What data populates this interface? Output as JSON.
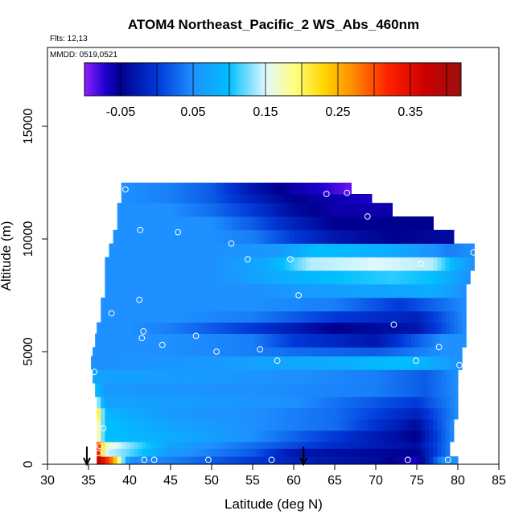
{
  "chart_data": {
    "type": "heatmap",
    "title": "ATOM4 Northeast_Pacific_2 WS_Abs_460nm",
    "flights_label": "Flts: 12,13",
    "dates_label": "MMDD: 0519,0521",
    "xlabel": "Latitude (deg N)",
    "ylabel": "Altitude (m)",
    "xlim": [
      30,
      85
    ],
    "ylim": [
      0,
      18500
    ],
    "xticks": [
      "30",
      "35",
      "40",
      "45",
      "50",
      "55",
      "60",
      "65",
      "70",
      "75",
      "80",
      "85"
    ],
    "yticks": [
      "0",
      "5000",
      "10000",
      "15000"
    ],
    "colorbar": {
      "min": -0.1,
      "max": 0.42,
      "ticks": [
        "-0.05",
        "0.05",
        "0.15",
        "0.25",
        "0.35"
      ],
      "tick_values": [
        -0.05,
        0.05,
        0.15,
        0.25,
        0.35
      ],
      "stops": [
        {
          "v": -0.1,
          "c": "#8f1fff"
        },
        {
          "v": -0.07,
          "c": "#1a00c9"
        },
        {
          "v": -0.05,
          "c": "#000090"
        },
        {
          "v": 0.0,
          "c": "#0038d8"
        },
        {
          "v": 0.05,
          "c": "#1e90ff"
        },
        {
          "v": 0.1,
          "c": "#00bfff"
        },
        {
          "v": 0.15,
          "c": "#e0f8ff"
        },
        {
          "v": 0.19,
          "c": "#ffff80"
        },
        {
          "v": 0.23,
          "c": "#ffd700"
        },
        {
          "v": 0.27,
          "c": "#ff8c00"
        },
        {
          "v": 0.32,
          "c": "#ff2000"
        },
        {
          "v": 0.37,
          "c": "#cc0000"
        },
        {
          "v": 0.42,
          "c": "#9e1010"
        }
      ]
    },
    "layers": [
      {
        "alt": [
          0,
          350
        ],
        "lat": [
          36,
          80
        ],
        "pts": [
          [
            36,
            0.4
          ],
          [
            37,
            0.33
          ],
          [
            38,
            0.27
          ],
          [
            39,
            0.15
          ],
          [
            40,
            0.05
          ],
          [
            45,
            0.04
          ],
          [
            55,
            0.0
          ],
          [
            60,
            -0.02
          ],
          [
            70,
            -0.04
          ],
          [
            75,
            -0.07
          ],
          [
            78,
            0.05
          ],
          [
            80,
            0.05
          ]
        ]
      },
      {
        "alt": [
          350,
          700
        ],
        "lat": [
          36,
          79
        ],
        "pts": [
          [
            36,
            0.38
          ],
          [
            37,
            0.15
          ],
          [
            40,
            0.12
          ],
          [
            45,
            0.06
          ],
          [
            55,
            0.02
          ],
          [
            60,
            -0.03
          ],
          [
            75,
            -0.05
          ],
          [
            79,
            0.04
          ]
        ]
      },
      {
        "alt": [
          700,
          1000
        ],
        "lat": [
          36,
          79
        ],
        "pts": [
          [
            36,
            0.35
          ],
          [
            37,
            0.17
          ],
          [
            40,
            0.13
          ],
          [
            45,
            0.07
          ],
          [
            55,
            0.03
          ],
          [
            65,
            -0.01
          ],
          [
            75,
            -0.04
          ],
          [
            79,
            0.04
          ]
        ]
      },
      {
        "alt": [
          1000,
          1500
        ],
        "lat": [
          36,
          79.5
        ],
        "pts": [
          [
            36,
            0.2
          ],
          [
            37,
            0.1
          ],
          [
            45,
            0.08
          ],
          [
            55,
            0.05
          ],
          [
            65,
            0.0
          ],
          [
            75,
            -0.05
          ],
          [
            79.5,
            0.05
          ]
        ]
      },
      {
        "alt": [
          1500,
          2000
        ],
        "lat": [
          36,
          79.5
        ],
        "pts": [
          [
            36,
            0.2
          ],
          [
            37,
            0.1
          ],
          [
            45,
            0.07
          ],
          [
            55,
            0.05
          ],
          [
            65,
            0.03
          ],
          [
            75,
            -0.04
          ],
          [
            79.5,
            0.05
          ]
        ]
      },
      {
        "alt": [
          2000,
          2500
        ],
        "lat": [
          36,
          80
        ],
        "pts": [
          [
            36,
            0.24
          ],
          [
            37,
            0.09
          ],
          [
            45,
            0.06
          ],
          [
            55,
            0.05
          ],
          [
            65,
            0.03
          ],
          [
            75,
            -0.02
          ],
          [
            80,
            0.05
          ]
        ]
      },
      {
        "alt": [
          2500,
          3000
        ],
        "lat": [
          36,
          80
        ],
        "pts": [
          [
            36,
            0.15
          ],
          [
            37,
            0.07
          ],
          [
            50,
            0.06
          ],
          [
            60,
            0.05
          ],
          [
            75,
            0.0
          ],
          [
            80,
            0.05
          ]
        ]
      },
      {
        "alt": [
          3000,
          3600
        ],
        "lat": [
          35.8,
          80
        ],
        "pts": [
          [
            35.8,
            0.1
          ],
          [
            37,
            0.06
          ],
          [
            55,
            0.05
          ],
          [
            70,
            0.04
          ],
          [
            76,
            0.02
          ],
          [
            80,
            0.05
          ]
        ]
      },
      {
        "alt": [
          3600,
          4200
        ],
        "lat": [
          35.5,
          80
        ],
        "pts": [
          [
            35.5,
            0.07
          ],
          [
            50,
            0.06
          ],
          [
            60,
            0.05
          ],
          [
            70,
            0.04
          ],
          [
            76,
            0.02
          ],
          [
            80,
            0.05
          ]
        ]
      },
      {
        "alt": [
          4200,
          4800
        ],
        "lat": [
          35.3,
          80.5
        ],
        "pts": [
          [
            35.3,
            0.05
          ],
          [
            50,
            0.06
          ],
          [
            57,
            0.07
          ],
          [
            65,
            0.08
          ],
          [
            74,
            0.1
          ],
          [
            78,
            0.07
          ],
          [
            80.5,
            0.05
          ]
        ]
      },
      {
        "alt": [
          4800,
          5200
        ],
        "lat": [
          35.5,
          80.5
        ],
        "pts": [
          [
            35.5,
            0.05
          ],
          [
            45,
            0.05
          ],
          [
            55,
            0.04
          ],
          [
            60,
            0.03
          ],
          [
            70,
            0.02
          ],
          [
            78,
            0.05
          ],
          [
            80.5,
            0.05
          ]
        ]
      },
      {
        "alt": [
          5200,
          5800
        ],
        "lat": [
          35.8,
          81
        ],
        "pts": [
          [
            35.8,
            0.05
          ],
          [
            45,
            0.05
          ],
          [
            55,
            0.04
          ],
          [
            60,
            0.0
          ],
          [
            70,
            -0.03
          ],
          [
            78,
            0.05
          ],
          [
            81,
            0.05
          ]
        ]
      },
      {
        "alt": [
          5800,
          6300
        ],
        "lat": [
          36,
          81
        ],
        "pts": [
          [
            36,
            0.05
          ],
          [
            40,
            0.05
          ],
          [
            45,
            0.04
          ],
          [
            55,
            0.0
          ],
          [
            65,
            -0.05
          ],
          [
            75,
            -0.03
          ],
          [
            81,
            0.05
          ]
        ]
      },
      {
        "alt": [
          6300,
          6800
        ],
        "lat": [
          36.5,
          81
        ],
        "pts": [
          [
            36.5,
            0.05
          ],
          [
            45,
            0.05
          ],
          [
            55,
            0.04
          ],
          [
            65,
            0.0
          ],
          [
            75,
            -0.02
          ],
          [
            81,
            0.05
          ]
        ]
      },
      {
        "alt": [
          6800,
          7400
        ],
        "lat": [
          36.5,
          81
        ],
        "pts": [
          [
            36.5,
            0.05
          ],
          [
            45,
            0.05
          ],
          [
            55,
            0.05
          ],
          [
            65,
            0.04
          ],
          [
            73,
            0.0
          ],
          [
            78,
            0.03
          ],
          [
            81,
            0.05
          ]
        ]
      },
      {
        "alt": [
          7400,
          8000
        ],
        "lat": [
          37,
          81
        ],
        "pts": [
          [
            37,
            0.05
          ],
          [
            45,
            0.05
          ],
          [
            55,
            0.05
          ],
          [
            60,
            0.06
          ],
          [
            70,
            0.07
          ],
          [
            77,
            0.08
          ],
          [
            81,
            0.05
          ]
        ]
      },
      {
        "alt": [
          8000,
          8600
        ],
        "lat": [
          37,
          81.5
        ],
        "pts": [
          [
            37,
            0.05
          ],
          [
            50,
            0.05
          ],
          [
            58,
            0.08
          ],
          [
            65,
            0.1
          ],
          [
            72,
            0.11
          ],
          [
            77,
            0.1
          ],
          [
            81.5,
            0.05
          ]
        ]
      },
      {
        "alt": [
          8600,
          9200
        ],
        "lat": [
          37,
          82
        ],
        "pts": [
          [
            37,
            0.05
          ],
          [
            50,
            0.05
          ],
          [
            57,
            0.08
          ],
          [
            62,
            0.14
          ],
          [
            70,
            0.15
          ],
          [
            77,
            0.14
          ],
          [
            80,
            0.08
          ],
          [
            82,
            0.05
          ]
        ]
      },
      {
        "alt": [
          9200,
          9800
        ],
        "lat": [
          37.5,
          82
        ],
        "pts": [
          [
            37.5,
            0.05
          ],
          [
            50,
            0.05
          ],
          [
            58,
            0.06
          ],
          [
            63,
            0.1
          ],
          [
            72,
            0.08
          ],
          [
            79,
            0.04
          ],
          [
            82,
            0.05
          ]
        ]
      },
      {
        "alt": [
          9800,
          10400
        ],
        "lat": [
          38,
          79.5
        ],
        "pts": [
          [
            38,
            0.05
          ],
          [
            50,
            0.05
          ],
          [
            55,
            0.04
          ],
          [
            60,
            0.0
          ],
          [
            65,
            -0.03
          ],
          [
            72,
            -0.05
          ],
          [
            79.5,
            -0.04
          ]
        ]
      },
      {
        "alt": [
          10400,
          11000
        ],
        "lat": [
          38.5,
          77
        ],
        "pts": [
          [
            38.5,
            0.05
          ],
          [
            50,
            0.05
          ],
          [
            55,
            0.02
          ],
          [
            60,
            -0.02
          ],
          [
            65,
            -0.05
          ],
          [
            77,
            -0.05
          ]
        ]
      },
      {
        "alt": [
          11000,
          11600
        ],
        "lat": [
          38.5,
          72
        ],
        "pts": [
          [
            38.5,
            0.05
          ],
          [
            45,
            0.05
          ],
          [
            50,
            0.03
          ],
          [
            55,
            0.0
          ],
          [
            60,
            -0.04
          ],
          [
            65,
            -0.06
          ],
          [
            72,
            -0.06
          ]
        ]
      },
      {
        "alt": [
          11600,
          12000
        ],
        "lat": [
          39,
          69.5
        ],
        "pts": [
          [
            39,
            0.05
          ],
          [
            45,
            0.04
          ],
          [
            50,
            0.02
          ],
          [
            55,
            -0.02
          ],
          [
            60,
            -0.05
          ],
          [
            65,
            -0.06
          ],
          [
            69.5,
            -0.07
          ]
        ]
      },
      {
        "alt": [
          12000,
          12500
        ],
        "lat": [
          39,
          67
        ],
        "pts": [
          [
            39,
            0.05
          ],
          [
            45,
            0.04
          ],
          [
            50,
            0.02
          ],
          [
            55,
            -0.03
          ],
          [
            60,
            -0.06
          ],
          [
            63,
            -0.07
          ],
          [
            67,
            -0.09
          ]
        ]
      }
    ],
    "profile_points": [
      [
        39.5,
        12200
      ],
      [
        41.3,
        10400
      ],
      [
        45.9,
        10300
      ],
      [
        52.4,
        9800
      ],
      [
        54.4,
        9100
      ],
      [
        59.6,
        9100
      ],
      [
        75.5,
        8900
      ],
      [
        81.9,
        9400
      ],
      [
        64,
        12000
      ],
      [
        66.5,
        12050
      ],
      [
        69,
        11000
      ],
      [
        41.2,
        7300
      ],
      [
        37.8,
        6700
      ],
      [
        60.6,
        7500
      ],
      [
        72.2,
        6200
      ],
      [
        41.7,
        5900
      ],
      [
        41.5,
        5600
      ],
      [
        44,
        5300
      ],
      [
        48.1,
        5700
      ],
      [
        50.6,
        5000
      ],
      [
        55.9,
        5100
      ],
      [
        58,
        4600
      ],
      [
        77.7,
        5200
      ],
      [
        74.9,
        4600
      ],
      [
        80.2,
        4400
      ],
      [
        35.7,
        4100
      ],
      [
        36.8,
        1600
      ],
      [
        36.4,
        800
      ],
      [
        36.2,
        500
      ],
      [
        41.8,
        200
      ],
      [
        43,
        200
      ],
      [
        49.6,
        200
      ],
      [
        57.3,
        200
      ],
      [
        73.9,
        200
      ],
      [
        78.8,
        200
      ]
    ],
    "arrows": [
      34.8,
      61.2
    ]
  }
}
